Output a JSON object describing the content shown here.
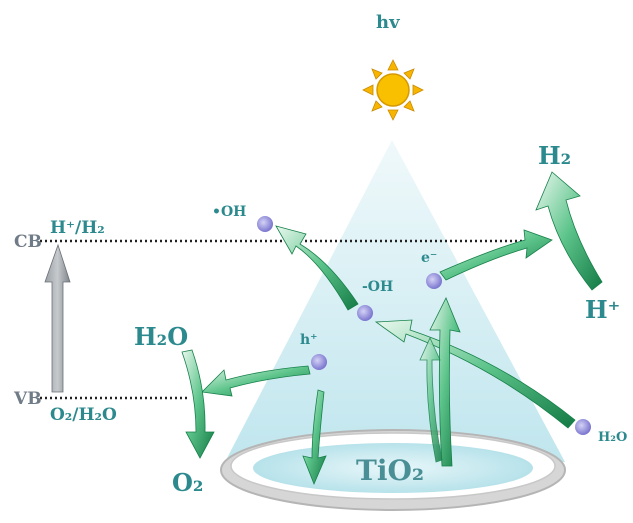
{
  "light": {
    "label": "hv"
  },
  "bands": {
    "conduction": "CB",
    "valence": "VB"
  },
  "couples": {
    "reduction": "H⁺/H₂",
    "oxidation": "O₂/H₂O"
  },
  "species": {
    "hydroxyl_radical": "•OH",
    "hydroxide": "-OH",
    "electron": "e⁻",
    "hole": "h⁺",
    "water_right": "H₂O",
    "water_left": "H₂O",
    "oxygen": "O₂",
    "hydrogen_gas": "H₂",
    "proton": "H⁺"
  },
  "catalyst": {
    "label": "TiO₂"
  },
  "colors": {
    "arrow_green": "#1f9a5a",
    "arrow_light": "#d6f2e2",
    "text_teal": "#2c8a8e",
    "band_gray": "#6f7b86",
    "particle": "#8c88d8",
    "sun": "#f7b500"
  }
}
